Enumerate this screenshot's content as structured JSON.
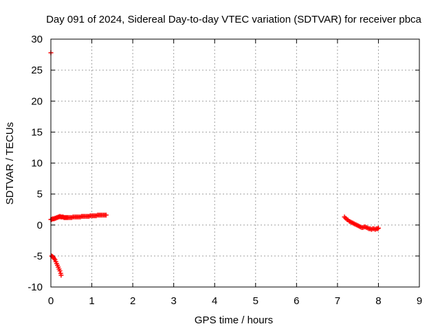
{
  "chart_data": {
    "type": "scatter",
    "title": "Day 091 of 2024, Sidereal Day-to-day VTEC variation (SDTVAR) for receiver pbca",
    "xlabel": "GPS time / hours",
    "ylabel": "SDTVAR / TECUs",
    "xlim": [
      0,
      9
    ],
    "ylim": [
      -10,
      30
    ],
    "xticks": [
      "0",
      "1",
      "2",
      "3",
      "4",
      "5",
      "6",
      "7",
      "8",
      "9"
    ],
    "yticks": [
      "-10",
      "-5",
      "0",
      "5",
      "10",
      "15",
      "20",
      "25",
      "30"
    ],
    "grid": true,
    "marker": "plus",
    "color": "#ff0000",
    "series": [
      {
        "points": [
          [
            0.0,
            27.8
          ],
          [
            0.0,
            0.9
          ],
          [
            0.02,
            0.9
          ],
          [
            0.04,
            1.0
          ],
          [
            0.06,
            1.0
          ],
          [
            0.08,
            1.0
          ],
          [
            0.1,
            1.1
          ],
          [
            0.12,
            1.1
          ],
          [
            0.14,
            1.2
          ],
          [
            0.16,
            1.2
          ],
          [
            0.18,
            1.3
          ],
          [
            0.2,
            1.3
          ],
          [
            0.22,
            1.4
          ],
          [
            0.24,
            1.3
          ],
          [
            0.26,
            1.3
          ],
          [
            0.28,
            1.3
          ],
          [
            0.3,
            1.3
          ],
          [
            0.32,
            1.2
          ],
          [
            0.34,
            1.2
          ],
          [
            0.36,
            1.2
          ],
          [
            0.38,
            1.2
          ],
          [
            0.4,
            1.2
          ],
          [
            0.42,
            1.2
          ],
          [
            0.45,
            1.2
          ],
          [
            0.48,
            1.2
          ],
          [
            0.51,
            1.2
          ],
          [
            0.54,
            1.3
          ],
          [
            0.57,
            1.3
          ],
          [
            0.6,
            1.3
          ],
          [
            0.63,
            1.3
          ],
          [
            0.66,
            1.3
          ],
          [
            0.69,
            1.3
          ],
          [
            0.72,
            1.3
          ],
          [
            0.75,
            1.4
          ],
          [
            0.78,
            1.4
          ],
          [
            0.81,
            1.4
          ],
          [
            0.84,
            1.4
          ],
          [
            0.87,
            1.4
          ],
          [
            0.9,
            1.4
          ],
          [
            0.93,
            1.4
          ],
          [
            0.96,
            1.5
          ],
          [
            0.99,
            1.5
          ],
          [
            1.02,
            1.5
          ],
          [
            1.05,
            1.5
          ],
          [
            1.08,
            1.5
          ],
          [
            1.11,
            1.5
          ],
          [
            1.14,
            1.6
          ],
          [
            1.17,
            1.6
          ],
          [
            1.2,
            1.6
          ],
          [
            1.23,
            1.6
          ],
          [
            1.26,
            1.6
          ],
          [
            1.29,
            1.6
          ],
          [
            1.32,
            1.6
          ],
          [
            1.35,
            1.6
          ],
          [
            0.02,
            -5.0
          ],
          [
            0.04,
            -5.1
          ],
          [
            0.06,
            -5.2
          ],
          [
            0.08,
            -5.4
          ],
          [
            0.1,
            -5.6
          ],
          [
            0.12,
            -5.9
          ],
          [
            0.14,
            -6.2
          ],
          [
            0.16,
            -6.5
          ],
          [
            0.18,
            -6.8
          ],
          [
            0.2,
            -7.1
          ],
          [
            0.22,
            -7.4
          ],
          [
            0.24,
            -7.8
          ],
          [
            0.25,
            -8.1
          ],
          [
            7.17,
            1.3
          ],
          [
            7.2,
            1.1
          ],
          [
            7.23,
            0.9
          ],
          [
            7.26,
            0.8
          ],
          [
            7.29,
            0.6
          ],
          [
            7.32,
            0.5
          ],
          [
            7.35,
            0.4
          ],
          [
            7.38,
            0.3
          ],
          [
            7.41,
            0.2
          ],
          [
            7.44,
            0.1
          ],
          [
            7.47,
            0.0
          ],
          [
            7.5,
            -0.1
          ],
          [
            7.53,
            -0.2
          ],
          [
            7.56,
            -0.3
          ],
          [
            7.59,
            -0.4
          ],
          [
            7.62,
            -0.4
          ],
          [
            7.65,
            -0.3
          ],
          [
            7.68,
            -0.3
          ],
          [
            7.71,
            -0.4
          ],
          [
            7.74,
            -0.5
          ],
          [
            7.77,
            -0.6
          ],
          [
            7.8,
            -0.6
          ],
          [
            7.83,
            -0.7
          ],
          [
            7.86,
            -0.6
          ],
          [
            7.89,
            -0.6
          ],
          [
            7.92,
            -0.7
          ],
          [
            7.95,
            -0.6
          ],
          [
            7.98,
            -0.6
          ],
          [
            8.0,
            -0.5
          ]
        ]
      }
    ]
  }
}
